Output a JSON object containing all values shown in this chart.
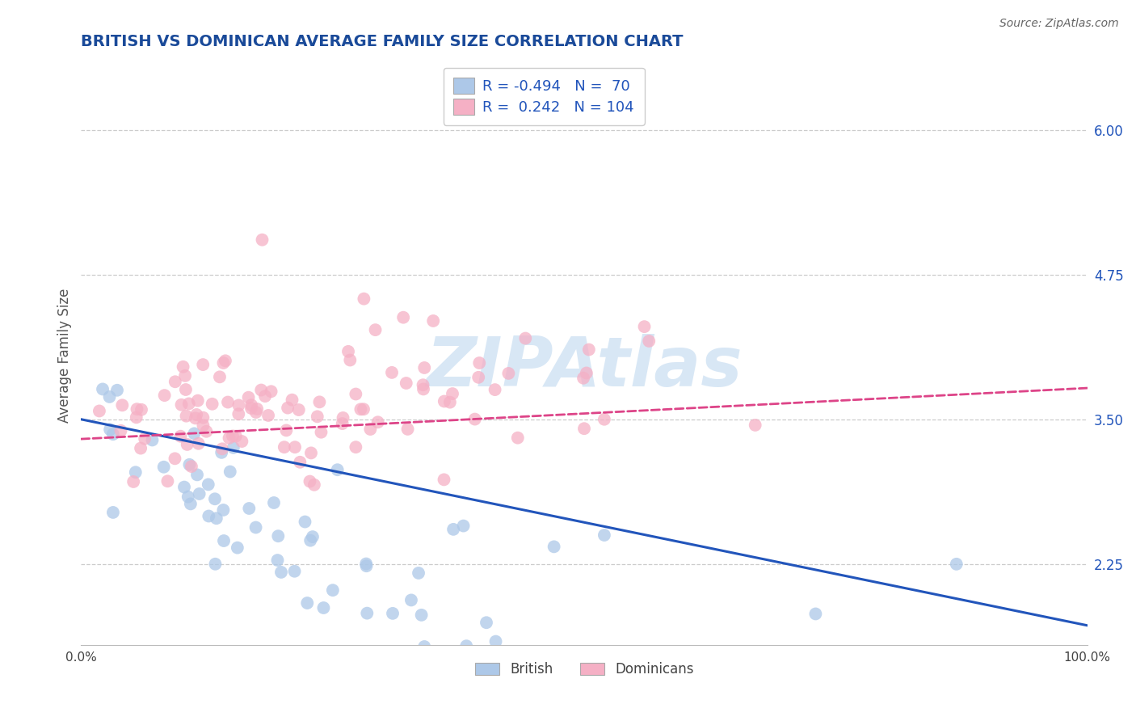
{
  "title": "BRITISH VS DOMINICAN AVERAGE FAMILY SIZE CORRELATION CHART",
  "source": "Source: ZipAtlas.com",
  "ylabel": "Average Family Size",
  "xlim": [
    0.0,
    1.0
  ],
  "ylim": [
    1.55,
    6.55
  ],
  "yticks": [
    2.25,
    3.5,
    4.75,
    6.0
  ],
  "british_fill_color": "#adc8e8",
  "dominican_fill_color": "#f5b0c5",
  "british_line_color": "#2255bb",
  "dominican_line_color": "#dd4488",
  "british_R": -0.494,
  "british_N": 70,
  "dominican_R": 0.242,
  "dominican_N": 104,
  "watermark": "ZIPAtlas",
  "legend_labels": [
    "British",
    "Dominicans"
  ],
  "title_color": "#1a4a99",
  "title_fontsize": 14,
  "right_tick_color": "#2255bb",
  "source_color": "#666666",
  "grid_color": "#cccccc",
  "scatter_size": 130,
  "scatter_alpha": 0.75
}
